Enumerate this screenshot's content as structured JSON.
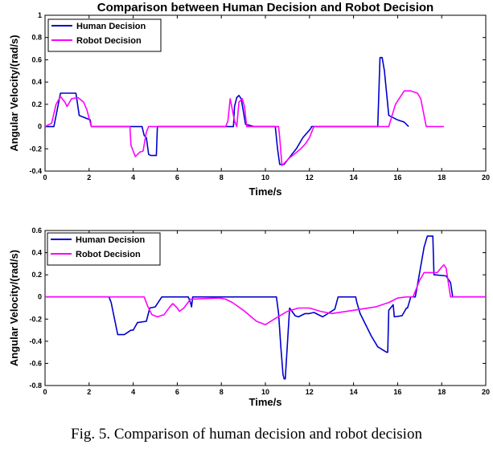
{
  "caption": "Fig. 5.   Comparison of human decision and robot decision",
  "chart_data": [
    {
      "type": "line",
      "title": "Comparison between Human Decision and Robot Decision",
      "xlabel": "Time/s",
      "ylabel": "Angular Velocity/(rad/s)",
      "xlim": [
        0,
        20
      ],
      "ylim": [
        -0.4,
        1
      ],
      "xticks": [
        "0",
        "2",
        "4",
        "6",
        "8",
        "10",
        "12",
        "14",
        "16",
        "18",
        "20"
      ],
      "yticks": [
        "-0.4",
        "-0.2",
        "0",
        "0.2",
        "0.4",
        "0.6",
        "0.8",
        "1"
      ],
      "legend_position": "top-left",
      "series": [
        {
          "name": "Human Decision",
          "color": "#0000cc",
          "x": [
            0,
            0.4,
            0.7,
            1.4,
            1.55,
            1.8,
            2.05,
            2.1,
            4.4,
            4.5,
            4.6,
            4.7,
            4.8,
            5.05,
            5.1,
            8.55,
            8.6,
            8.7,
            8.8,
            8.9,
            9.1,
            9.5,
            10.45,
            10.55,
            10.65,
            10.85,
            11.2,
            11.4,
            11.7,
            12.05,
            12.1,
            15.1,
            15.2,
            15.3,
            15.4,
            15.6,
            16.0,
            16.3,
            16.5
          ],
          "y": [
            0,
            0,
            0.3,
            0.3,
            0.1,
            0.08,
            0.06,
            0,
            0,
            -0.08,
            -0.1,
            -0.25,
            -0.26,
            -0.26,
            0,
            0,
            0.18,
            0.26,
            0.28,
            0.25,
            0.02,
            0,
            0,
            -0.2,
            -0.34,
            -0.34,
            -0.25,
            -0.2,
            -0.1,
            -0.02,
            0,
            0,
            0.62,
            0.62,
            0.5,
            0.1,
            0.06,
            0.04,
            0
          ]
        },
        {
          "name": "Robot Decision",
          "color": "#ff00ff",
          "x": [
            0,
            0.3,
            0.5,
            0.7,
            0.9,
            1.0,
            1.2,
            1.5,
            1.75,
            1.9,
            2.1,
            3.85,
            3.9,
            4.1,
            4.3,
            4.45,
            4.6,
            4.7,
            8.2,
            8.3,
            8.4,
            8.6,
            8.7,
            8.8,
            8.95,
            9.05,
            9.15,
            10.6,
            10.65,
            10.75,
            10.9,
            11.1,
            11.3,
            11.6,
            11.8,
            12.0,
            12.2,
            15.6,
            15.75,
            15.9,
            16.3,
            16.6,
            16.9,
            17.05,
            17.15,
            17.3,
            18.1
          ],
          "y": [
            0,
            0.03,
            0.2,
            0.27,
            0.22,
            0.18,
            0.25,
            0.26,
            0.22,
            0.15,
            0,
            0,
            -0.17,
            -0.27,
            -0.23,
            -0.22,
            -0.05,
            0,
            0,
            0.05,
            0.25,
            0.05,
            0.0,
            0.22,
            0.25,
            0.18,
            0,
            0,
            -0.1,
            -0.35,
            -0.32,
            -0.28,
            -0.25,
            -0.2,
            -0.16,
            -0.1,
            0,
            0,
            0.1,
            0.2,
            0.32,
            0.32,
            0.3,
            0.25,
            0.15,
            0,
            0
          ]
        }
      ]
    },
    {
      "type": "line",
      "title": "",
      "xlabel": "Time/s",
      "ylabel": "Angular Velocity/(rad/s)",
      "xlim": [
        0,
        20
      ],
      "ylim": [
        -0.8,
        0.6
      ],
      "xticks": [
        "0",
        "2",
        "4",
        "6",
        "8",
        "10",
        "12",
        "14",
        "16",
        "18",
        "20"
      ],
      "yticks": [
        "-0.8",
        "-0.6",
        "-0.4",
        "-0.2",
        "0",
        "0.2",
        "0.4",
        "0.6"
      ],
      "legend_position": "top-left",
      "series": [
        {
          "name": "Human Decision",
          "color": "#0000cc",
          "x": [
            0,
            2.9,
            3.0,
            3.3,
            3.6,
            3.9,
            4.0,
            4.2,
            4.25,
            4.6,
            4.75,
            5.0,
            5.3,
            6.5,
            6.6,
            6.65,
            6.7,
            10.5,
            10.6,
            10.7,
            10.8,
            10.85,
            10.9,
            11.1,
            11.35,
            11.5,
            11.8,
            12.0,
            12.2,
            12.5,
            12.6,
            13.15,
            13.3,
            14.1,
            14.15,
            14.3,
            14.8,
            15.1,
            15.5,
            15.55,
            15.6,
            15.8,
            15.85,
            16.2,
            16.4,
            16.45,
            16.6,
            16.8,
            16.85,
            17.2,
            17.35,
            17.6,
            17.65,
            18.2,
            18.4,
            18.5,
            20
          ],
          "y": [
            0,
            0,
            -0.05,
            -0.34,
            -0.34,
            -0.3,
            -0.3,
            -0.23,
            -0.23,
            -0.22,
            -0.1,
            -0.09,
            0,
            0,
            -0.05,
            -0.09,
            0,
            0,
            -0.15,
            -0.45,
            -0.7,
            -0.74,
            -0.74,
            -0.1,
            -0.17,
            -0.18,
            -0.15,
            -0.15,
            -0.14,
            -0.17,
            -0.18,
            -0.11,
            0,
            0,
            -0.05,
            -0.15,
            -0.35,
            -0.45,
            -0.5,
            -0.5,
            -0.12,
            -0.07,
            -0.18,
            -0.17,
            -0.1,
            -0.1,
            0,
            0,
            0.05,
            0.45,
            0.55,
            0.55,
            0.2,
            0.19,
            0.13,
            0,
            0
          ]
        },
        {
          "name": "Robot Decision",
          "color": "#ff00ff",
          "x": [
            0,
            4.5,
            4.65,
            4.85,
            5.1,
            5.4,
            5.7,
            5.8,
            6.0,
            6.1,
            6.3,
            6.6,
            7.9,
            8.2,
            8.5,
            9.0,
            9.6,
            10.0,
            10.4,
            11.0,
            11.5,
            12.0,
            12.5,
            13.0,
            14.0,
            15.0,
            15.6,
            15.9,
            16.0,
            16.4,
            16.7,
            17.0,
            17.2,
            17.8,
            18.0,
            18.1,
            18.2,
            18.4,
            20
          ],
          "y": [
            0,
            0,
            -0.08,
            -0.16,
            -0.18,
            -0.16,
            -0.08,
            -0.06,
            -0.1,
            -0.13,
            -0.1,
            -0.02,
            -0.01,
            -0.02,
            -0.05,
            -0.12,
            -0.22,
            -0.25,
            -0.2,
            -0.13,
            -0.1,
            -0.1,
            -0.13,
            -0.15,
            -0.12,
            -0.09,
            -0.05,
            -0.02,
            -0.01,
            0.0,
            0.0,
            0.15,
            0.22,
            0.22,
            0.27,
            0.29,
            0.26,
            0.0,
            0
          ]
        }
      ]
    }
  ]
}
